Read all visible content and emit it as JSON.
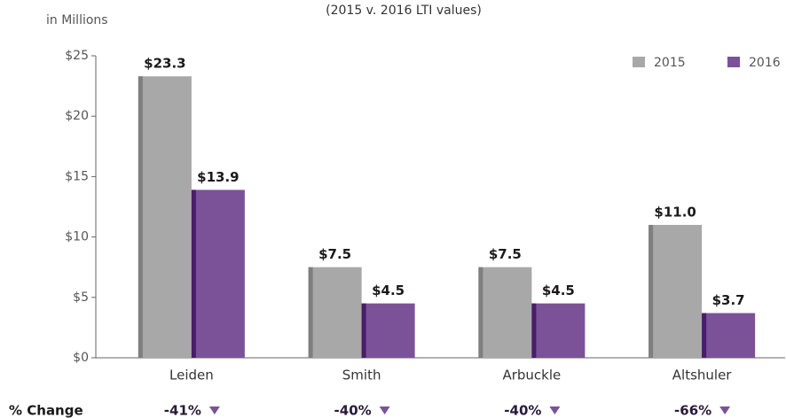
{
  "chart_data": {
    "type": "bar",
    "subtitle": "(2015 v. 2016 LTI values)",
    "y_axis_label": "in Millions",
    "categories": [
      "Leiden",
      "Smith",
      "Arbuckle",
      "Altshuler"
    ],
    "series": [
      {
        "name": "2015",
        "color": "#a8a8a8",
        "values": [
          23.3,
          7.5,
          7.5,
          11.0
        ],
        "value_labels": [
          "$23.3",
          "$7.5",
          "$7.5",
          "$11.0"
        ]
      },
      {
        "name": "2016",
        "color": "#7b5298",
        "values": [
          13.9,
          4.5,
          4.5,
          3.7
        ],
        "value_labels": [
          "$13.9",
          "$4.5",
          "$4.5",
          "$3.7"
        ]
      }
    ],
    "ylim": [
      0,
      25
    ],
    "yticks": [
      {
        "value": 0,
        "label": "$0"
      },
      {
        "value": 5,
        "label": "$5"
      },
      {
        "value": 10,
        "label": "$10"
      },
      {
        "value": 15,
        "label": "$15"
      },
      {
        "value": 20,
        "label": "$20"
      },
      {
        "value": 25,
        "label": "$25"
      }
    ],
    "legend": "top-right",
    "change_row": {
      "label": "% Change",
      "values": [
        "-41%",
        "-40%",
        "-40%",
        "-66%"
      ]
    }
  }
}
